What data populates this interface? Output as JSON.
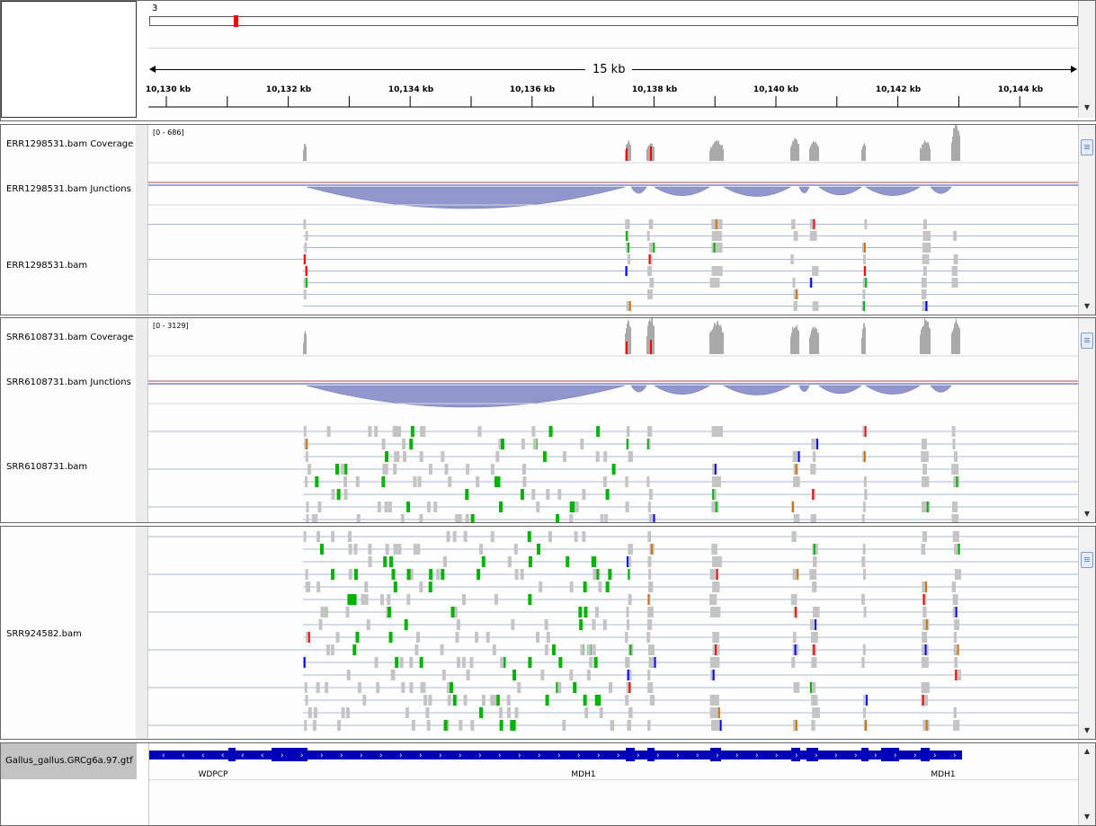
{
  "header": {
    "chromosome": "3",
    "span_label": "15 kb",
    "ruler_ticks": [
      "10,130 kb",
      "10,132 kb",
      "10,134 kb",
      "10,136 kb",
      "10,138 kb",
      "10,140 kb",
      "10,142 kb",
      "10,144 kb"
    ]
  },
  "panels": [
    {
      "tracks": [
        {
          "name": "ERR1298531.bam Coverage",
          "range": "[0 - 686]"
        },
        {
          "name": "ERR1298531.bam Junctions"
        },
        {
          "name": "ERR1298531.bam"
        }
      ]
    },
    {
      "tracks": [
        {
          "name": "SRR6108731.bam Coverage",
          "range": "[0 - 3129]"
        },
        {
          "name": "SRR6108731.bam Junctions"
        },
        {
          "name": "SRR6108731.bam"
        }
      ]
    },
    {
      "tracks": [
        {
          "name": "SRR924582.bam"
        }
      ]
    }
  ],
  "annotation": {
    "track_name": "Gallus_gallus.GRCg6a.97.gtf",
    "genes": [
      "WDPCP",
      "MDH1",
      "MDH1"
    ]
  },
  "colors": {
    "coverage": "#a9a9a9",
    "junction": "#7f86c4",
    "gene": "#0000b4",
    "read": "#c4c4c4",
    "locus_marker": "#ff0000",
    "mismatch_A": "#00b300",
    "mismatch_C": "#0000ff",
    "mismatch_G": "#d17105",
    "mismatch_T": "#ff0000"
  }
}
